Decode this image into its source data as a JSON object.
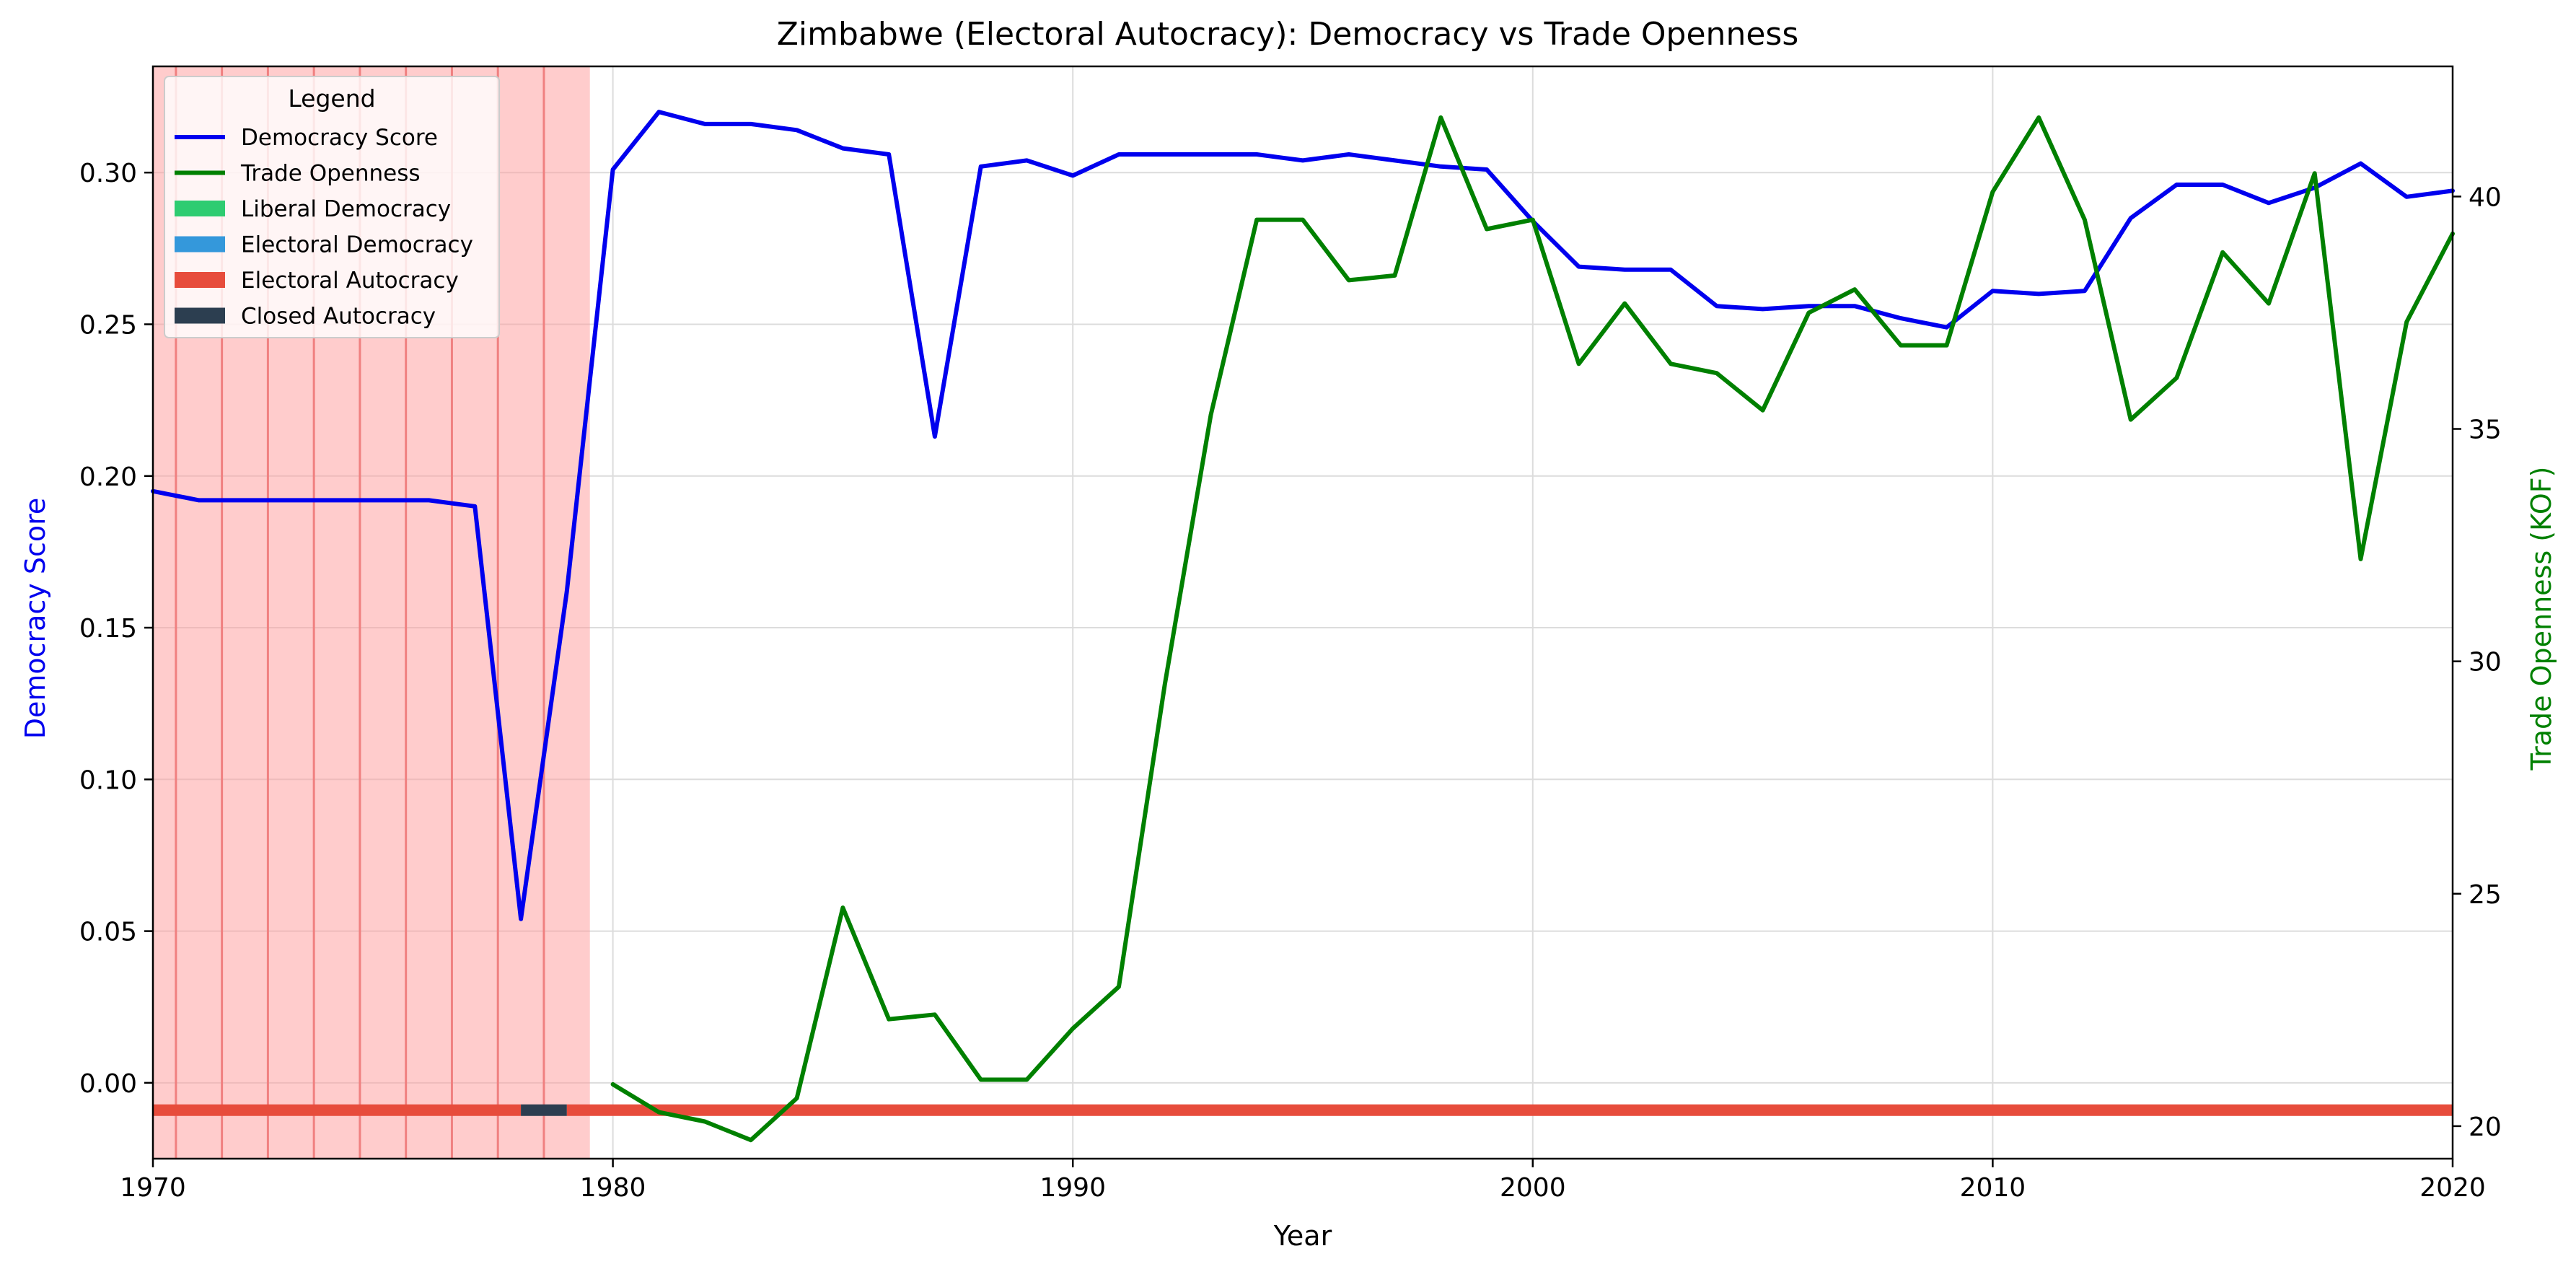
{
  "chart_data": {
    "type": "line",
    "title": "Zimbabwe (Electoral Autocracy): Democracy vs Trade Openness",
    "xlabel": "Year",
    "ylabel_left": "Democracy Score",
    "ylabel_right": "Trade Openness (KOF)",
    "xlim": [
      1970,
      2020
    ],
    "ylim_left": [
      -0.025,
      0.335
    ],
    "ylim_right": [
      19.3,
      42.8
    ],
    "xticks": [
      1970,
      1980,
      1990,
      2000,
      2010,
      2020
    ],
    "yticks_left": [
      0.0,
      0.05,
      0.1,
      0.15,
      0.2,
      0.25,
      0.3
    ],
    "yticks_left_labels": [
      "0.00",
      "0.05",
      "0.10",
      "0.15",
      "0.20",
      "0.25",
      "0.30"
    ],
    "yticks_right": [
      20,
      25,
      30,
      35,
      40
    ],
    "yticks_right_labels": [
      "20",
      "25",
      "30",
      "35",
      "40"
    ],
    "grid": true,
    "legend": {
      "title": "Legend",
      "placement": "upper-left",
      "entries": [
        {
          "label": "Democracy Score",
          "kind": "line",
          "color": "#0000ee"
        },
        {
          "label": "Trade Openness",
          "kind": "line",
          "color": "#008000"
        },
        {
          "label": "Liberal Democracy",
          "kind": "patch",
          "color": "#2ecc71"
        },
        {
          "label": "Electoral Democracy",
          "kind": "patch",
          "color": "#3498db"
        },
        {
          "label": "Electoral Autocracy",
          "kind": "patch",
          "color": "#e74c3c"
        },
        {
          "label": "Closed Autocracy",
          "kind": "patch",
          "color": "#2c3e50"
        }
      ]
    },
    "shaded_region": {
      "x_start": 1970,
      "x_end": 1979.5,
      "color": "#ff9999",
      "line_color": "#f08080"
    },
    "shaded_lines_x": [
      1970.5,
      1971.5,
      1972.5,
      1973.5,
      1974.5,
      1975.5,
      1976.5,
      1977.5,
      1978.5
    ],
    "regime_bar": {
      "y": -0.009,
      "segments": [
        {
          "start": 1970,
          "end": 1978,
          "regime": "Electoral Autocracy",
          "color": "#e74c3c"
        },
        {
          "start": 1978,
          "end": 1979,
          "regime": "Closed Autocracy",
          "color": "#2c3e50"
        },
        {
          "start": 1979,
          "end": 2020,
          "regime": "Electoral Autocracy",
          "color": "#e74c3c"
        }
      ]
    },
    "series": [
      {
        "name": "Democracy Score",
        "axis": "left",
        "color": "#0000ee",
        "x": [
          1970,
          1971,
          1972,
          1973,
          1974,
          1975,
          1976,
          1977,
          1978,
          1979,
          1980,
          1981,
          1982,
          1983,
          1984,
          1985,
          1986,
          1987,
          1988,
          1989,
          1990,
          1991,
          1992,
          1993,
          1994,
          1995,
          1996,
          1997,
          1998,
          1999,
          2000,
          2001,
          2002,
          2003,
          2004,
          2005,
          2006,
          2007,
          2008,
          2009,
          2010,
          2011,
          2012,
          2013,
          2014,
          2015,
          2016,
          2017,
          2018,
          2019,
          2020
        ],
        "values": [
          0.195,
          0.192,
          0.192,
          0.192,
          0.192,
          0.192,
          0.192,
          0.19,
          0.054,
          0.162,
          0.301,
          0.32,
          0.316,
          0.316,
          0.314,
          0.308,
          0.306,
          0.213,
          0.302,
          0.304,
          0.299,
          0.306,
          0.306,
          0.306,
          0.306,
          0.304,
          0.306,
          0.304,
          0.302,
          0.301,
          0.284,
          0.269,
          0.268,
          0.268,
          0.256,
          0.255,
          0.256,
          0.256,
          0.252,
          0.249,
          0.261,
          0.26,
          0.261,
          0.285,
          0.296,
          0.296,
          0.29,
          0.295,
          0.303,
          0.292,
          0.294
        ]
      },
      {
        "name": "Trade Openness",
        "axis": "right",
        "color": "#008000",
        "x": [
          1980,
          1981,
          1982,
          1983,
          1984,
          1985,
          1986,
          1987,
          1988,
          1989,
          1990,
          1991,
          1992,
          1993,
          1994,
          1995,
          1996,
          1997,
          1998,
          1999,
          2000,
          2001,
          2002,
          2003,
          2004,
          2005,
          2006,
          2007,
          2008,
          2009,
          2010,
          2011,
          2012,
          2013,
          2014,
          2015,
          2016,
          2017,
          2018,
          2019,
          2020
        ],
        "values": [
          20.9,
          20.3,
          20.1,
          19.7,
          20.6,
          24.7,
          22.3,
          22.4,
          21.0,
          21.0,
          22.1,
          23.0,
          29.5,
          35.3,
          39.5,
          39.5,
          38.2,
          38.3,
          41.7,
          39.3,
          39.5,
          36.4,
          37.7,
          36.4,
          36.2,
          35.4,
          37.5,
          38.0,
          36.8,
          36.8,
          40.1,
          41.7,
          39.5,
          35.2,
          36.1,
          38.8,
          37.7,
          40.5,
          32.2,
          37.3,
          39.2
        ]
      }
    ]
  }
}
